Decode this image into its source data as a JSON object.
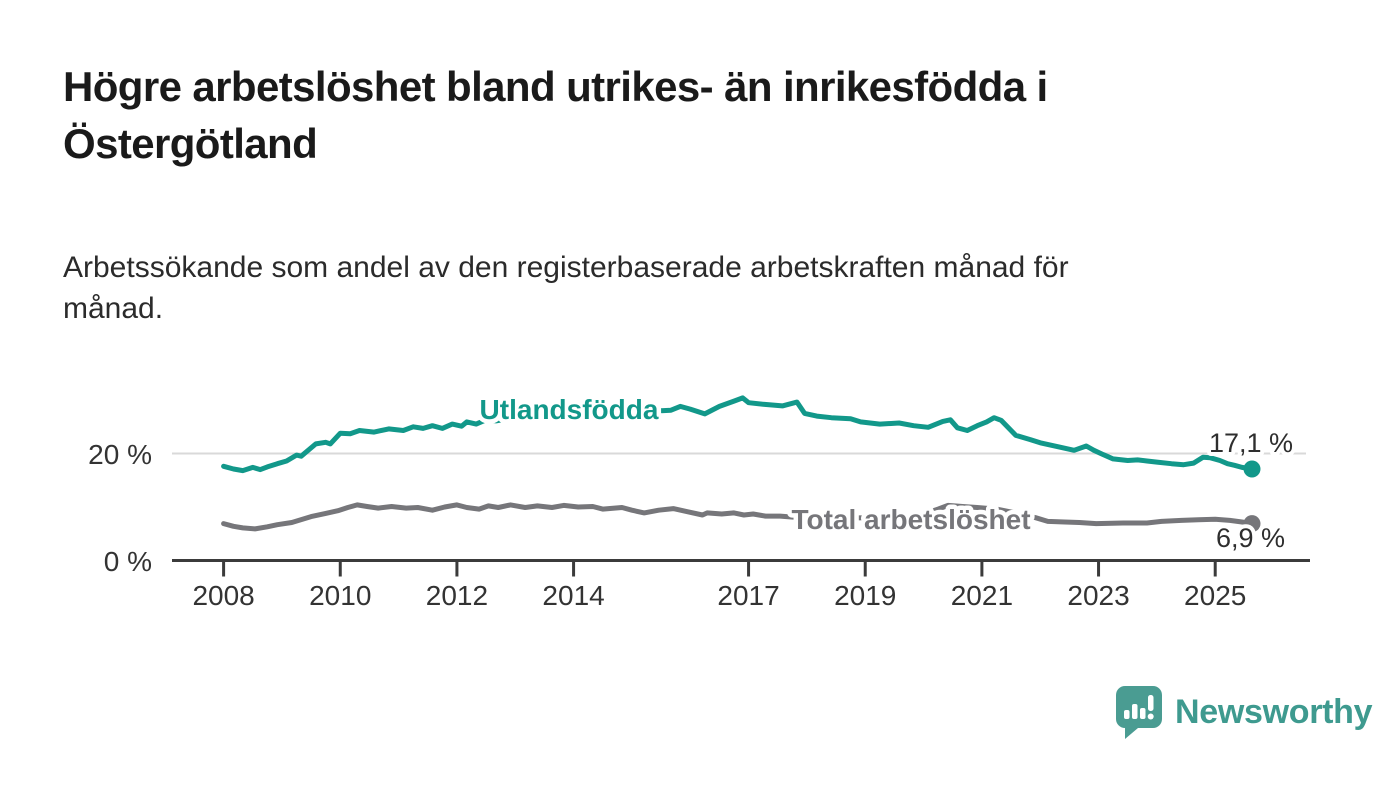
{
  "header": {
    "title_lines": [
      "Högre arbetslöshet bland utrikes- än inrikesfödda i",
      "Östergötland"
    ],
    "subtitle_lines": [
      "Arbetssökande som andel av den registerbaserade arbetskraften månad för",
      "månad."
    ]
  },
  "colors": {
    "title": "#1a1a1a",
    "text": "#333333",
    "axis": "#3b3b3b",
    "grid": "#d9d9d9",
    "teal": "#12988a",
    "gray": "#76767a",
    "logo": "#3e9a8f"
  },
  "chart_data": {
    "type": "line",
    "x_unit": "year (monthly observations)",
    "xlim": [
      2007.9,
      2025.9
    ],
    "ylim": [
      0,
      35
    ],
    "grid": "single horizontal gridline at 20 %",
    "legend_position": "inline labels on lines",
    "x_ticks": [
      2008,
      2010,
      2012,
      2014,
      2017,
      2019,
      2021,
      2023,
      2025
    ],
    "y_ticks": [
      {
        "value": 0,
        "label": "0 %",
        "grid": false
      },
      {
        "value": 20,
        "label": "20 %",
        "grid": true
      }
    ],
    "series": [
      {
        "name": "Utlandsfödda",
        "color": "#12988a",
        "end_label": "17,1 %",
        "end_value": 17.1,
        "points": [
          [
            2008.0,
            17.6
          ],
          [
            2008.17,
            17.1
          ],
          [
            2008.33,
            16.8
          ],
          [
            2008.5,
            17.4
          ],
          [
            2008.63,
            17.0
          ],
          [
            2008.75,
            17.5
          ],
          [
            2008.92,
            18.1
          ],
          [
            2009.08,
            18.6
          ],
          [
            2009.25,
            19.7
          ],
          [
            2009.33,
            19.5
          ],
          [
            2009.58,
            21.8
          ],
          [
            2009.75,
            22.1
          ],
          [
            2009.83,
            21.8
          ],
          [
            2010.0,
            23.8
          ],
          [
            2010.17,
            23.7
          ],
          [
            2010.33,
            24.3
          ],
          [
            2010.58,
            24.0
          ],
          [
            2010.83,
            24.6
          ],
          [
            2011.08,
            24.3
          ],
          [
            2011.25,
            25.0
          ],
          [
            2011.42,
            24.7
          ],
          [
            2011.58,
            25.2
          ],
          [
            2011.75,
            24.7
          ],
          [
            2011.92,
            25.5
          ],
          [
            2012.08,
            25.1
          ],
          [
            2012.17,
            25.9
          ],
          [
            2012.33,
            25.5
          ],
          [
            2012.5,
            26.3
          ],
          [
            2012.67,
            26.1
          ],
          [
            2012.83,
            26.4
          ],
          [
            2013.0,
            26.3
          ],
          [
            2013.25,
            26.6
          ],
          [
            2013.5,
            26.8
          ],
          [
            2013.75,
            26.7
          ],
          [
            2014.0,
            27.1
          ],
          [
            2014.25,
            27.2
          ],
          [
            2014.5,
            27.5
          ],
          [
            2014.75,
            27.4
          ],
          [
            2015.0,
            27.7
          ],
          [
            2015.25,
            27.9
          ],
          [
            2015.5,
            28.0
          ],
          [
            2015.67,
            28.1
          ],
          [
            2015.83,
            28.8
          ],
          [
            2016.0,
            28.3
          ],
          [
            2016.25,
            27.4
          ],
          [
            2016.5,
            28.8
          ],
          [
            2016.75,
            29.8
          ],
          [
            2016.9,
            30.4
          ],
          [
            2017.0,
            29.5
          ],
          [
            2017.25,
            29.2
          ],
          [
            2017.58,
            28.9
          ],
          [
            2017.83,
            29.6
          ],
          [
            2017.96,
            27.5
          ],
          [
            2018.17,
            27.0
          ],
          [
            2018.42,
            26.7
          ],
          [
            2018.75,
            26.5
          ],
          [
            2018.92,
            25.9
          ],
          [
            2019.25,
            25.5
          ],
          [
            2019.58,
            25.7
          ],
          [
            2019.83,
            25.2
          ],
          [
            2020.08,
            24.9
          ],
          [
            2020.33,
            26.0
          ],
          [
            2020.46,
            26.3
          ],
          [
            2020.58,
            24.8
          ],
          [
            2020.75,
            24.3
          ],
          [
            2020.92,
            25.2
          ],
          [
            2021.08,
            25.9
          ],
          [
            2021.21,
            26.7
          ],
          [
            2021.33,
            26.2
          ],
          [
            2021.58,
            23.4
          ],
          [
            2021.83,
            22.6
          ],
          [
            2022.0,
            22.0
          ],
          [
            2022.33,
            21.2
          ],
          [
            2022.58,
            20.6
          ],
          [
            2022.79,
            21.4
          ],
          [
            2022.92,
            20.6
          ],
          [
            2023.08,
            19.8
          ],
          [
            2023.25,
            19.0
          ],
          [
            2023.5,
            18.7
          ],
          [
            2023.67,
            18.8
          ],
          [
            2023.83,
            18.6
          ],
          [
            2024.0,
            18.4
          ],
          [
            2024.25,
            18.1
          ],
          [
            2024.46,
            17.9
          ],
          [
            2024.63,
            18.2
          ],
          [
            2024.79,
            19.3
          ],
          [
            2024.92,
            19.2
          ],
          [
            2025.08,
            18.7
          ],
          [
            2025.21,
            18.1
          ],
          [
            2025.33,
            17.8
          ],
          [
            2025.46,
            17.4
          ],
          [
            2025.63,
            17.1
          ]
        ]
      },
      {
        "name": "Total arbetslöshet",
        "color": "#76767a",
        "end_label": "6,9 %",
        "end_value": 6.9,
        "points": [
          [
            2008.0,
            6.9
          ],
          [
            2008.17,
            6.4
          ],
          [
            2008.33,
            6.1
          ],
          [
            2008.54,
            5.9
          ],
          [
            2008.75,
            6.3
          ],
          [
            2008.92,
            6.7
          ],
          [
            2009.17,
            7.1
          ],
          [
            2009.5,
            8.2
          ],
          [
            2009.75,
            8.8
          ],
          [
            2009.96,
            9.3
          ],
          [
            2010.13,
            9.9
          ],
          [
            2010.29,
            10.4
          ],
          [
            2010.46,
            10.1
          ],
          [
            2010.65,
            9.8
          ],
          [
            2010.88,
            10.1
          ],
          [
            2011.13,
            9.8
          ],
          [
            2011.33,
            9.9
          ],
          [
            2011.58,
            9.4
          ],
          [
            2011.79,
            10.0
          ],
          [
            2012.0,
            10.4
          ],
          [
            2012.17,
            9.9
          ],
          [
            2012.38,
            9.6
          ],
          [
            2012.54,
            10.2
          ],
          [
            2012.71,
            9.9
          ],
          [
            2012.92,
            10.4
          ],
          [
            2013.17,
            9.9
          ],
          [
            2013.38,
            10.2
          ],
          [
            2013.63,
            9.9
          ],
          [
            2013.83,
            10.3
          ],
          [
            2014.08,
            10.0
          ],
          [
            2014.33,
            10.1
          ],
          [
            2014.5,
            9.6
          ],
          [
            2014.83,
            9.9
          ],
          [
            2015.0,
            9.4
          ],
          [
            2015.21,
            8.9
          ],
          [
            2015.46,
            9.4
          ],
          [
            2015.71,
            9.7
          ],
          [
            2015.96,
            9.1
          ],
          [
            2016.21,
            8.5
          ],
          [
            2016.29,
            8.9
          ],
          [
            2016.54,
            8.7
          ],
          [
            2016.75,
            8.9
          ],
          [
            2016.92,
            8.5
          ],
          [
            2017.08,
            8.7
          ],
          [
            2017.29,
            8.3
          ],
          [
            2017.54,
            8.3
          ],
          [
            2017.79,
            8.1
          ],
          [
            2018.04,
            8.0
          ],
          [
            2018.5,
            7.9
          ],
          [
            2019.0,
            8.0
          ],
          [
            2019.5,
            8.1
          ],
          [
            2019.92,
            8.4
          ],
          [
            2020.25,
            9.6
          ],
          [
            2020.42,
            10.3
          ],
          [
            2020.67,
            10.1
          ],
          [
            2020.92,
            9.9
          ],
          [
            2021.25,
            9.6
          ],
          [
            2021.58,
            8.9
          ],
          [
            2021.92,
            8.0
          ],
          [
            2022.13,
            7.3
          ],
          [
            2022.42,
            7.2
          ],
          [
            2022.67,
            7.1
          ],
          [
            2022.96,
            6.9
          ],
          [
            2023.42,
            7.0
          ],
          [
            2023.83,
            7.0
          ],
          [
            2024.08,
            7.3
          ],
          [
            2024.42,
            7.5
          ],
          [
            2024.71,
            7.6
          ],
          [
            2025.0,
            7.7
          ],
          [
            2025.25,
            7.5
          ],
          [
            2025.46,
            7.2
          ],
          [
            2025.63,
            6.9
          ]
        ]
      }
    ]
  },
  "footer": {
    "brand": "Newsworthy",
    "logo_icon": "bar-chart-speech-bubble"
  }
}
